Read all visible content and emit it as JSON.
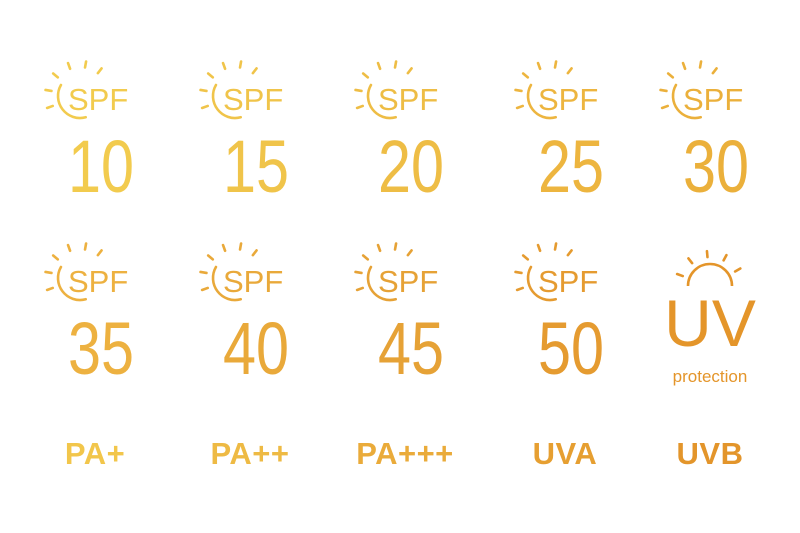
{
  "spf_icons": [
    {
      "prefix": "SPF",
      "value": "10",
      "color": "#F2CB4E"
    },
    {
      "prefix": "SPF",
      "value": "15",
      "color": "#F0C44A"
    },
    {
      "prefix": "SPF",
      "value": "20",
      "color": "#EEBD45"
    },
    {
      "prefix": "SPF",
      "value": "25",
      "color": "#EDB53F"
    },
    {
      "prefix": "SPF",
      "value": "30",
      "color": "#EBB03B"
    },
    {
      "prefix": "SPF",
      "value": "35",
      "color": "#EDB140"
    },
    {
      "prefix": "SPF",
      "value": "40",
      "color": "#E9A93A"
    },
    {
      "prefix": "SPF",
      "value": "45",
      "color": "#E6A236"
    },
    {
      "prefix": "SPF",
      "value": "50",
      "color": "#E59B30"
    }
  ],
  "uv_icon": {
    "title": "UV",
    "subtitle": "protection",
    "color": "#E4952A"
  },
  "labels": [
    {
      "text": "PA+",
      "color": "#F2C64B"
    },
    {
      "text": "PA++",
      "color": "#EEBA44"
    },
    {
      "text": "PA+++",
      "color": "#EAAB3A"
    },
    {
      "text": "UVA",
      "color": "#E69F31"
    },
    {
      "text": "UVB",
      "color": "#E3952B"
    }
  ]
}
